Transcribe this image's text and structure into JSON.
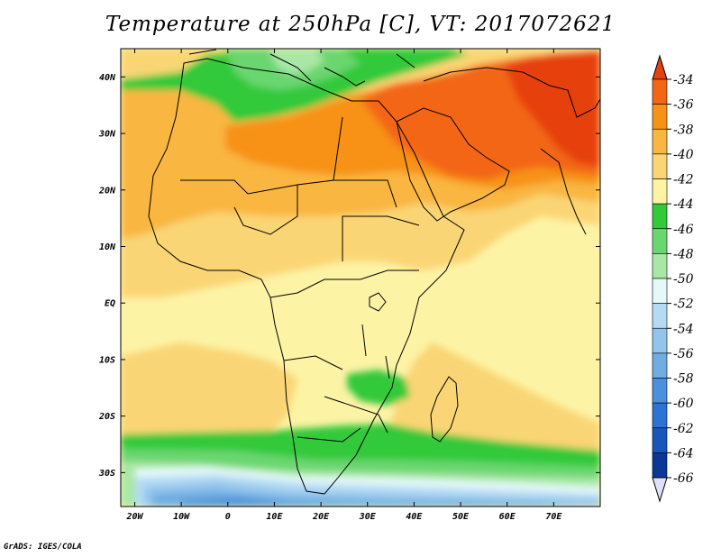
{
  "title": "Temperature at 250hPa [C], VT: 2017072621",
  "credit": "GrADS: IGES/COLA",
  "map": {
    "lon_range": [
      -23,
      80
    ],
    "lat_range": [
      -36,
      45
    ],
    "lat_ticks": [
      {
        "value": 40,
        "label": "40N"
      },
      {
        "value": 30,
        "label": "30N"
      },
      {
        "value": 20,
        "label": "20N"
      },
      {
        "value": 10,
        "label": "10N"
      },
      {
        "value": 0,
        "label": "EQ"
      },
      {
        "value": -10,
        "label": "10S"
      },
      {
        "value": -20,
        "label": "20S"
      },
      {
        "value": -30,
        "label": "30S"
      }
    ],
    "lon_ticks": [
      {
        "value": -20,
        "label": "20W"
      },
      {
        "value": -10,
        "label": "10W"
      },
      {
        "value": 0,
        "label": "0"
      },
      {
        "value": 10,
        "label": "10E"
      },
      {
        "value": 20,
        "label": "20E"
      },
      {
        "value": 30,
        "label": "30E"
      },
      {
        "value": 40,
        "label": "40E"
      },
      {
        "value": 50,
        "label": "50E"
      },
      {
        "value": 60,
        "label": "60E"
      },
      {
        "value": 70,
        "label": "70E"
      }
    ]
  },
  "colorbar": {
    "labels": [
      "-34",
      "-36",
      "-38",
      "-40",
      "-42",
      "-44",
      "-46",
      "-48",
      "-50",
      "-52",
      "-54",
      "-56",
      "-58",
      "-60",
      "-62",
      "-64",
      "-66"
    ],
    "colors": {
      "above_-34": "#e6400e",
      "-36_-34": "#f36613",
      "-38_-36": "#f79218",
      "-40_-38": "#f9b640",
      "-42_-40": "#fad574",
      "-44_-42": "#fdf3a5",
      "-46_-44": "#33c93a",
      "-48_-46": "#6ad66f",
      "-50_-48": "#a9e7a6",
      "-52_-50": "#e6f9f9",
      "-54_-52": "#b5dbf4",
      "-56_-54": "#93c5ec",
      "-58_-56": "#6fade3",
      "-60_-58": "#4b90dc",
      "-62_-60": "#2b73d5",
      "-64_-62": "#1856b9",
      "-66_-64": "#0c3796",
      "below_-66": "#101470"
    },
    "bottom_triangle_color": "#e0e0f8"
  }
}
